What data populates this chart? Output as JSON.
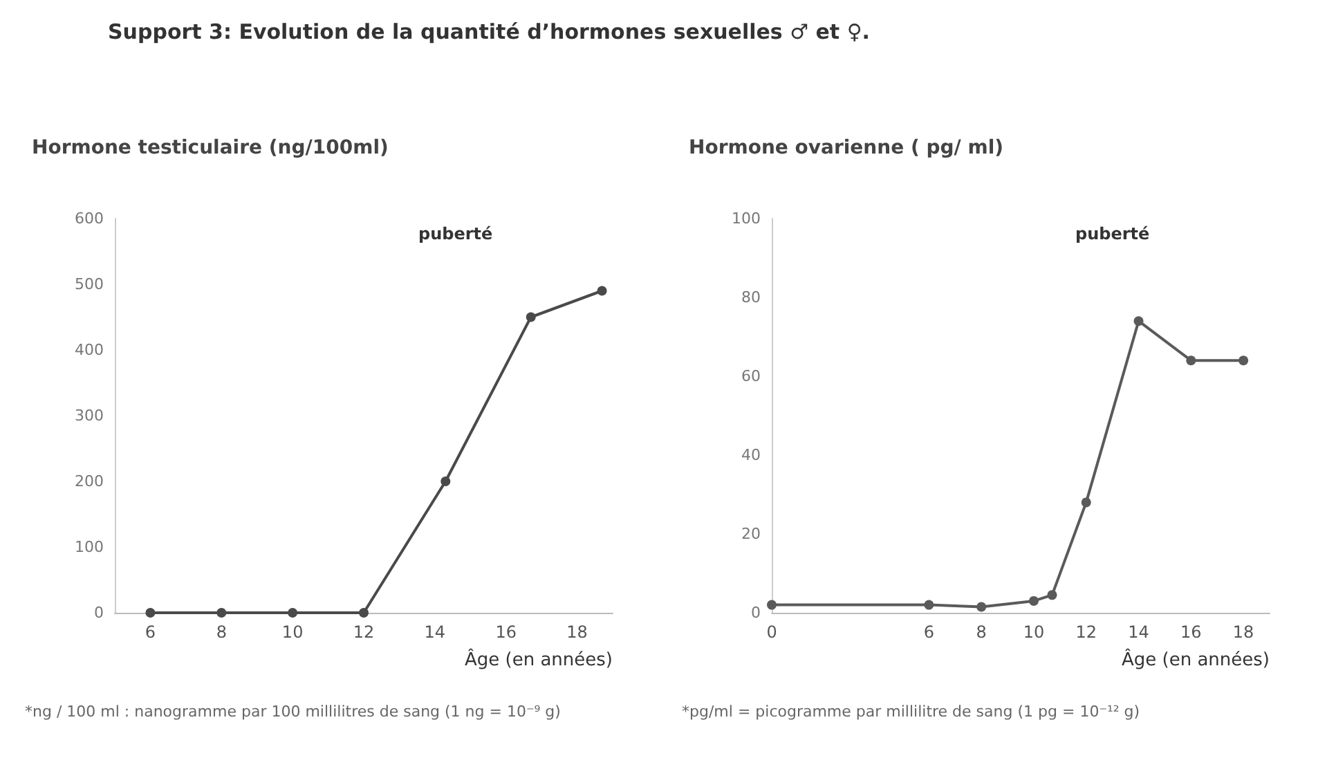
{
  "chart_data": [
    {
      "type": "line",
      "title": "Support 3: Evolution de la quantité d’hormones sexuelles ♂ et ♀.",
      "ylabel": "Hormone testiculaire (ng/100ml)",
      "xlabel": "Âge (en années)",
      "x": [
        6,
        8,
        10,
        12,
        14.3,
        16.7,
        18.7
      ],
      "series": [
        {
          "color": "#4a4a4a",
          "values": [
            0,
            0,
            0,
            0,
            200,
            450,
            490
          ]
        }
      ],
      "xlim": [
        5,
        19
      ],
      "xticks": [
        6,
        8,
        10,
        12,
        14,
        16,
        18
      ],
      "ylim": [
        0,
        600
      ],
      "yticks": [
        0,
        100,
        200,
        300,
        400,
        500,
        600
      ],
      "grid": false,
      "marker": "circle",
      "line_style": "solid",
      "annotations": [
        "puberté",
        "*ng / 100 ml : nanogramme par 100 millilitres de sang (1 ng = 10⁻⁹ g)"
      ]
    },
    {
      "type": "line",
      "ylabel": "Hormone ovarienne ( pg/ ml)",
      "xlabel": "Âge (en années)",
      "x": [
        0,
        6,
        8,
        10,
        10.7,
        12,
        14,
        16,
        18
      ],
      "series": [
        {
          "color": "#5a5a5a",
          "values": [
            2,
            2,
            1.5,
            3,
            4.5,
            28,
            74,
            64,
            64
          ]
        }
      ],
      "xlim": [
        0,
        19
      ],
      "xticks": [
        0,
        6,
        8,
        10,
        12,
        14,
        16,
        18
      ],
      "ylim": [
        0,
        100
      ],
      "yticks": [
        0,
        20,
        40,
        60,
        80,
        100
      ],
      "grid": false,
      "marker": "circle",
      "line_style": "solid",
      "annotations": [
        "puberté",
        "*pg/ml = picogramme par millilitre de sang (1 pg = 10⁻¹² g)"
      ]
    }
  ]
}
